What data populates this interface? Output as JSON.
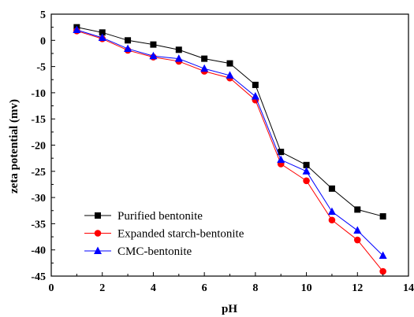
{
  "chart_data": {
    "type": "line",
    "title": "",
    "xlabel": "pH",
    "ylabel": "zeta potential (mv)",
    "xlim": [
      0,
      14
    ],
    "ylim": [
      -45,
      5
    ],
    "xticks": [
      0,
      2,
      4,
      6,
      8,
      10,
      12,
      14
    ],
    "yticks": [
      5,
      0,
      -5,
      -10,
      -15,
      -20,
      -25,
      -30,
      -35,
      -40,
      -45
    ],
    "grid": false,
    "legend_position": "bottom-left",
    "x": [
      1,
      2,
      3,
      4,
      5,
      6,
      7,
      8,
      9,
      10,
      11,
      12,
      13
    ],
    "series": [
      {
        "name": "Purified bentonite",
        "color": "#000000",
        "marker": "square",
        "values": [
          2.5,
          1.5,
          0.0,
          -0.8,
          -1.8,
          -3.5,
          -4.4,
          -8.5,
          -21.3,
          -23.8,
          -28.3,
          -32.3,
          -33.6
        ]
      },
      {
        "name": "Expanded starch-bentonite",
        "color": "#ff0000",
        "marker": "circle",
        "values": [
          1.8,
          0.3,
          -1.9,
          -3.2,
          -4.0,
          -5.9,
          -7.2,
          -11.4,
          -23.6,
          -26.8,
          -34.3,
          -38.1,
          -44.1
        ]
      },
      {
        "name": "CMC-bentonite",
        "color": "#0000ff",
        "marker": "triangle",
        "values": [
          2.0,
          0.5,
          -1.6,
          -3.0,
          -3.5,
          -5.4,
          -6.7,
          -10.7,
          -22.8,
          -25.0,
          -32.7,
          -36.3,
          -41.1
        ]
      }
    ]
  }
}
